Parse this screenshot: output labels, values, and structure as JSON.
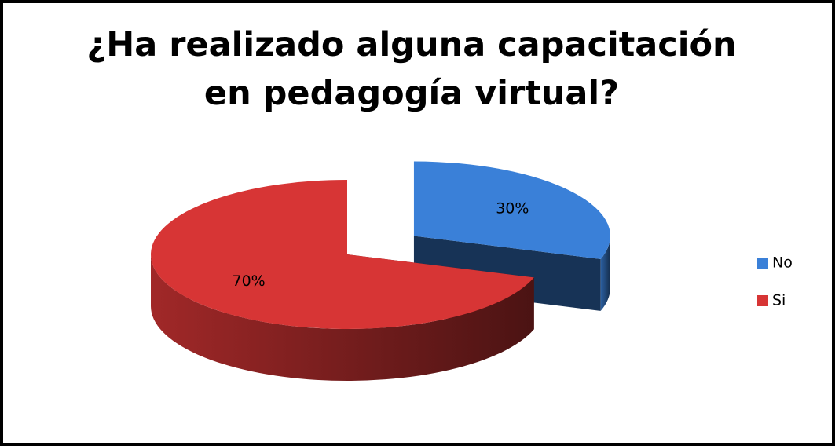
{
  "chart_data": {
    "type": "pie",
    "title": "¿Ha realizado alguna capacitación en pedagogía virtual?",
    "categories": [
      "No",
      "Si"
    ],
    "values": [
      30,
      70
    ],
    "value_labels": [
      "30%",
      "70%"
    ],
    "colors": [
      "#3a80d8",
      "#d73535"
    ],
    "legend": "right"
  }
}
